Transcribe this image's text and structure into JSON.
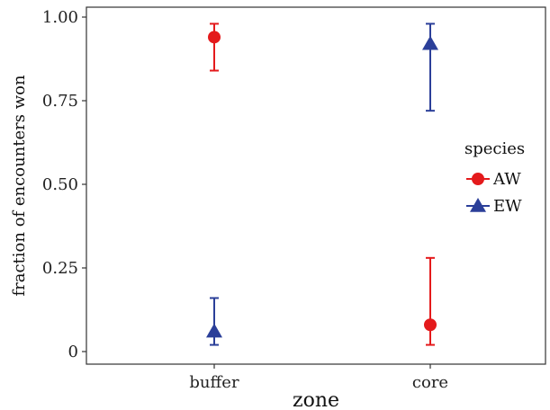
{
  "chart_data": {
    "type": "scatter",
    "xlabel": "zone",
    "ylabel": "fraction of encounters won",
    "categories": [
      "buffer",
      "core"
    ],
    "ylim": [
      0,
      1
    ],
    "yticks": [
      {
        "value": 0,
        "label": "0"
      },
      {
        "value": 0.25,
        "label": "0.25"
      },
      {
        "value": 0.5,
        "label": "0.50"
      },
      {
        "value": 0.75,
        "label": "0.75"
      },
      {
        "value": 1.0,
        "label": "1.00"
      }
    ],
    "grid": false,
    "legend": {
      "title": "species",
      "position": "right"
    },
    "series": [
      {
        "name": "AW",
        "color": "#e41a1c",
        "marker": "circle",
        "values": [
          0.94,
          0.08
        ],
        "lower": [
          0.84,
          0.02
        ],
        "upper": [
          0.98,
          0.28
        ]
      },
      {
        "name": "EW",
        "color": "#2b3f99",
        "marker": "triangle",
        "values": [
          0.06,
          0.92
        ],
        "lower": [
          0.02,
          0.72
        ],
        "upper": [
          0.16,
          0.98
        ]
      }
    ]
  }
}
